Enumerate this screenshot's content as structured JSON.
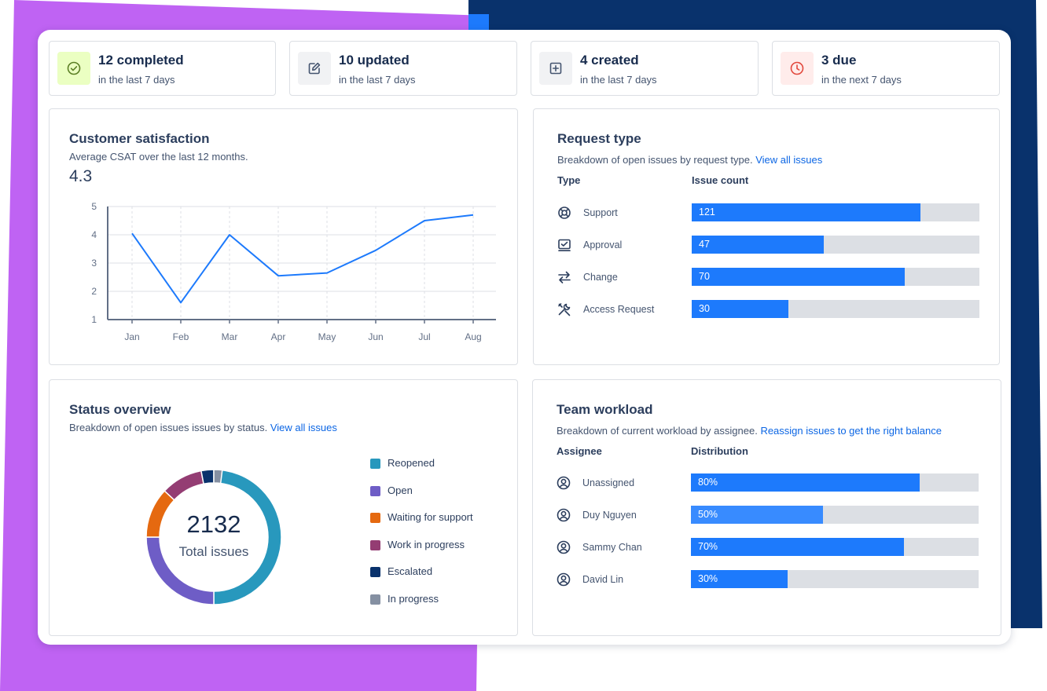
{
  "colors": {
    "purple": "#bf63f3",
    "navy": "#09326c",
    "accent": "#1d7afc",
    "link": "#0c66e4"
  },
  "stats": [
    {
      "icon": "check-circle-icon",
      "title": "12 completed",
      "subtitle": "in the last 7 days",
      "tint": "#dcfff1"
    },
    {
      "icon": "edit-icon",
      "title": "10 updated",
      "subtitle": "in the last 7 days",
      "tint": "#f1f2f4"
    },
    {
      "icon": "add-square-icon",
      "title": "4 created",
      "subtitle": "in the last 7 days",
      "tint": "#f1f2f4"
    },
    {
      "icon": "clock-icon",
      "title": "3 due",
      "subtitle": "in the next 7 days",
      "tint": "#ffeceb"
    }
  ],
  "csat": {
    "title": "Customer satisfaction",
    "description": "Average CSAT over the last 12 months.",
    "value": "4.3"
  },
  "chart_data": {
    "type": "line",
    "title": "Customer satisfaction",
    "categories": [
      "Jan",
      "Feb",
      "Mar",
      "Apr",
      "May",
      "Jun",
      "Jul",
      "Aug"
    ],
    "values": [
      4.05,
      1.6,
      4.0,
      2.55,
      2.65,
      3.45,
      4.5,
      4.7
    ],
    "ylim": [
      1,
      5
    ],
    "yticks": [
      1,
      2,
      3,
      4,
      5
    ],
    "xlabel": "",
    "ylabel": "",
    "grid": true
  },
  "request_type": {
    "title": "Request type",
    "description": "Breakdown of open issues by request type.",
    "link": "View all issues",
    "col_type": "Type",
    "col_count": "Issue count",
    "rows": [
      {
        "icon": "lifebuoy-icon",
        "label": "Support",
        "value": "121",
        "fraction": 0.795
      },
      {
        "icon": "approval-icon",
        "label": "Approval",
        "value": "47",
        "fraction": 0.46
      },
      {
        "icon": "arrows-swap-icon",
        "label": "Change",
        "value": "70",
        "fraction": 0.74
      },
      {
        "icon": "tools-icon",
        "label": "Access Request",
        "value": "30",
        "fraction": 0.337
      }
    ]
  },
  "status": {
    "title": "Status overview",
    "description": "Breakdown of open issues issues by status.",
    "link": "View all issues",
    "total": "2132",
    "total_label": "Total issues",
    "segments": [
      {
        "label": "Reopened",
        "fraction": 0.5,
        "color": "#2898bd"
      },
      {
        "label": "Open",
        "fraction": 0.25,
        "color": "#6e5dc6"
      },
      {
        "label": "Waiting for support",
        "fraction": 0.12,
        "color": "#e56910"
      },
      {
        "label": "Work in progress",
        "fraction": 0.1,
        "color": "#943d73"
      },
      {
        "label": "Escalated",
        "fraction": 0.03,
        "color": "#09326c"
      },
      {
        "label": "In progress",
        "fraction": 0.02,
        "color": "#8590a2"
      }
    ]
  },
  "workload": {
    "title": "Team workload",
    "description": "Breakdown of current workload by assignee.",
    "link": "Reassign issues to get the right balance",
    "col_assignee": "Assignee",
    "col_distribution": "Distribution",
    "rows": [
      {
        "icon": "person-icon",
        "label": "Unassigned",
        "value": "80%",
        "fraction": 0.795,
        "color": "#1d7afc"
      },
      {
        "icon": "person-icon",
        "label": "Duy Nguyen",
        "value": "50%",
        "fraction": 0.46,
        "color": "#388bff"
      },
      {
        "icon": "person-icon",
        "label": "Sammy Chan",
        "value": "70%",
        "fraction": 0.74,
        "color": "#1d7afc"
      },
      {
        "icon": "person-icon",
        "label": "David Lin",
        "value": "30%",
        "fraction": 0.337,
        "color": "#1d7afc"
      }
    ]
  }
}
